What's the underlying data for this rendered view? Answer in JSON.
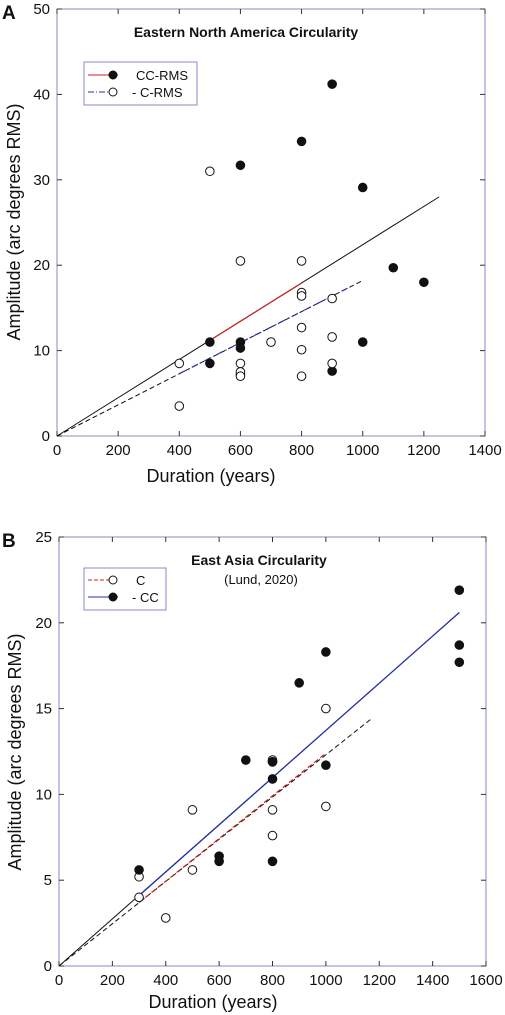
{
  "chart_data": [
    {
      "type": "scatter",
      "panel_letter": "A",
      "title": "Eastern North America Circularity",
      "subtitle": "",
      "xlabel": "Duration (years)",
      "ylabel": "Amplitude (arc degrees RMS)",
      "xlim": [
        0,
        1400
      ],
      "ylim": [
        0,
        50
      ],
      "x_ticks": [
        "0",
        "200",
        "400",
        "600",
        "800",
        "1000",
        "1200",
        "1400"
      ],
      "y_ticks": [
        "0",
        "10",
        "20",
        "30",
        "40",
        "50"
      ],
      "grid": false,
      "legend_position": "top-left",
      "legend": [
        {
          "label": "CC-RMS",
          "marker": "filled",
          "line_color": "#cc2222",
          "line_style": "solid"
        },
        {
          "label": "- C-RMS",
          "marker": "open",
          "line_color": "#2233aa",
          "line_style": "dashdot"
        }
      ],
      "series": [
        {
          "name": "CC-RMS",
          "marker": "filled",
          "points": [
            [
              500,
              11.0
            ],
            [
              500,
              8.5
            ],
            [
              600,
              31.7
            ],
            [
              600,
              11.0
            ],
            [
              600,
              10.3
            ],
            [
              600,
              7.2
            ],
            [
              800,
              34.5
            ],
            [
              900,
              41.2
            ],
            [
              900,
              7.6
            ],
            [
              1000,
              29.1
            ],
            [
              1000,
              11.0
            ],
            [
              1100,
              19.7
            ],
            [
              1200,
              18.0
            ]
          ],
          "fit": {
            "x": [
              0,
              1250
            ],
            "y": [
              0,
              28.0
            ],
            "style": "solid",
            "color": "#111111"
          },
          "fit_overlay": {
            "x": [
              500,
              800
            ],
            "y": [
              11.2,
              17.9
            ],
            "color": "#cc2222"
          }
        },
        {
          "name": "C-RMS",
          "marker": "open",
          "points": [
            [
              400,
              8.5
            ],
            [
              400,
              3.5
            ],
            [
              500,
              31.0
            ],
            [
              600,
              20.5
            ],
            [
              600,
              8.5
            ],
            [
              600,
              7.5
            ],
            [
              600,
              7.0
            ],
            [
              700,
              11.0
            ],
            [
              800,
              20.5
            ],
            [
              800,
              16.8
            ],
            [
              800,
              16.4
            ],
            [
              800,
              12.7
            ],
            [
              800,
              10.1
            ],
            [
              800,
              7.0
            ],
            [
              900,
              16.1
            ],
            [
              900,
              11.6
            ],
            [
              900,
              8.5
            ]
          ],
          "fit": {
            "x": [
              0,
              1000
            ],
            "y": [
              0,
              18.2
            ],
            "style": "dashed",
            "color": "#111111"
          },
          "fit_overlay": {
            "x": [
              400,
              950
            ],
            "y": [
              7.3,
              17.3
            ],
            "color": "#2233aa",
            "style": "dashdot"
          }
        }
      ]
    },
    {
      "type": "scatter",
      "panel_letter": "B",
      "title": "East Asia Circularity",
      "subtitle": "(Lund, 2020)",
      "xlabel": "Duration (years)",
      "ylabel": "Amplitude (arc degrees RMS)",
      "xlim": [
        0,
        1600
      ],
      "ylim": [
        0,
        25
      ],
      "x_ticks": [
        "0",
        "200",
        "400",
        "600",
        "800",
        "1000",
        "1200",
        "1400",
        "1600"
      ],
      "y_ticks": [
        "0",
        "5",
        "10",
        "15",
        "20",
        "25"
      ],
      "grid": false,
      "legend_position": "top-left",
      "legend": [
        {
          "label": "C",
          "marker": "open",
          "line_color": "#cc2222",
          "line_style": "dashed"
        },
        {
          "label": "- CC",
          "marker": "filled",
          "line_color": "#2233aa",
          "line_style": "solid"
        }
      ],
      "series": [
        {
          "name": "C",
          "marker": "open",
          "points": [
            [
              300,
              5.2
            ],
            [
              300,
              4.0
            ],
            [
              400,
              2.8
            ],
            [
              500,
              9.1
            ],
            [
              500,
              5.6
            ],
            [
              800,
              12.0
            ],
            [
              800,
              11.9
            ],
            [
              800,
              9.1
            ],
            [
              800,
              7.6
            ],
            [
              1000,
              15.0
            ],
            [
              1000,
              9.3
            ]
          ],
          "fit": {
            "x": [
              0,
              1170
            ],
            "y": [
              0,
              14.4
            ],
            "style": "dashed",
            "color": "#111111"
          },
          "fit_overlay": {
            "x": [
              300,
              1000
            ],
            "y": [
              3.7,
              12.4
            ],
            "color": "#cc2222",
            "style": "dashed"
          }
        },
        {
          "name": "CC",
          "marker": "filled",
          "points": [
            [
              300,
              5.6
            ],
            [
              600,
              6.4
            ],
            [
              600,
              6.1
            ],
            [
              700,
              12.0
            ],
            [
              800,
              11.9
            ],
            [
              800,
              10.9
            ],
            [
              800,
              6.1
            ],
            [
              900,
              16.5
            ],
            [
              1000,
              18.3
            ],
            [
              1000,
              11.7
            ],
            [
              1500,
              21.9
            ],
            [
              1500,
              18.7
            ],
            [
              1500,
              17.7
            ]
          ],
          "fit": {
            "x": [
              0,
              1500
            ],
            "y": [
              0,
              20.6
            ],
            "style": "solid",
            "color": "#111111"
          },
          "fit_overlay": {
            "x": [
              300,
              1500
            ],
            "y": [
              4.1,
              20.6
            ],
            "color": "#2233aa",
            "style": "solid"
          }
        }
      ]
    }
  ]
}
